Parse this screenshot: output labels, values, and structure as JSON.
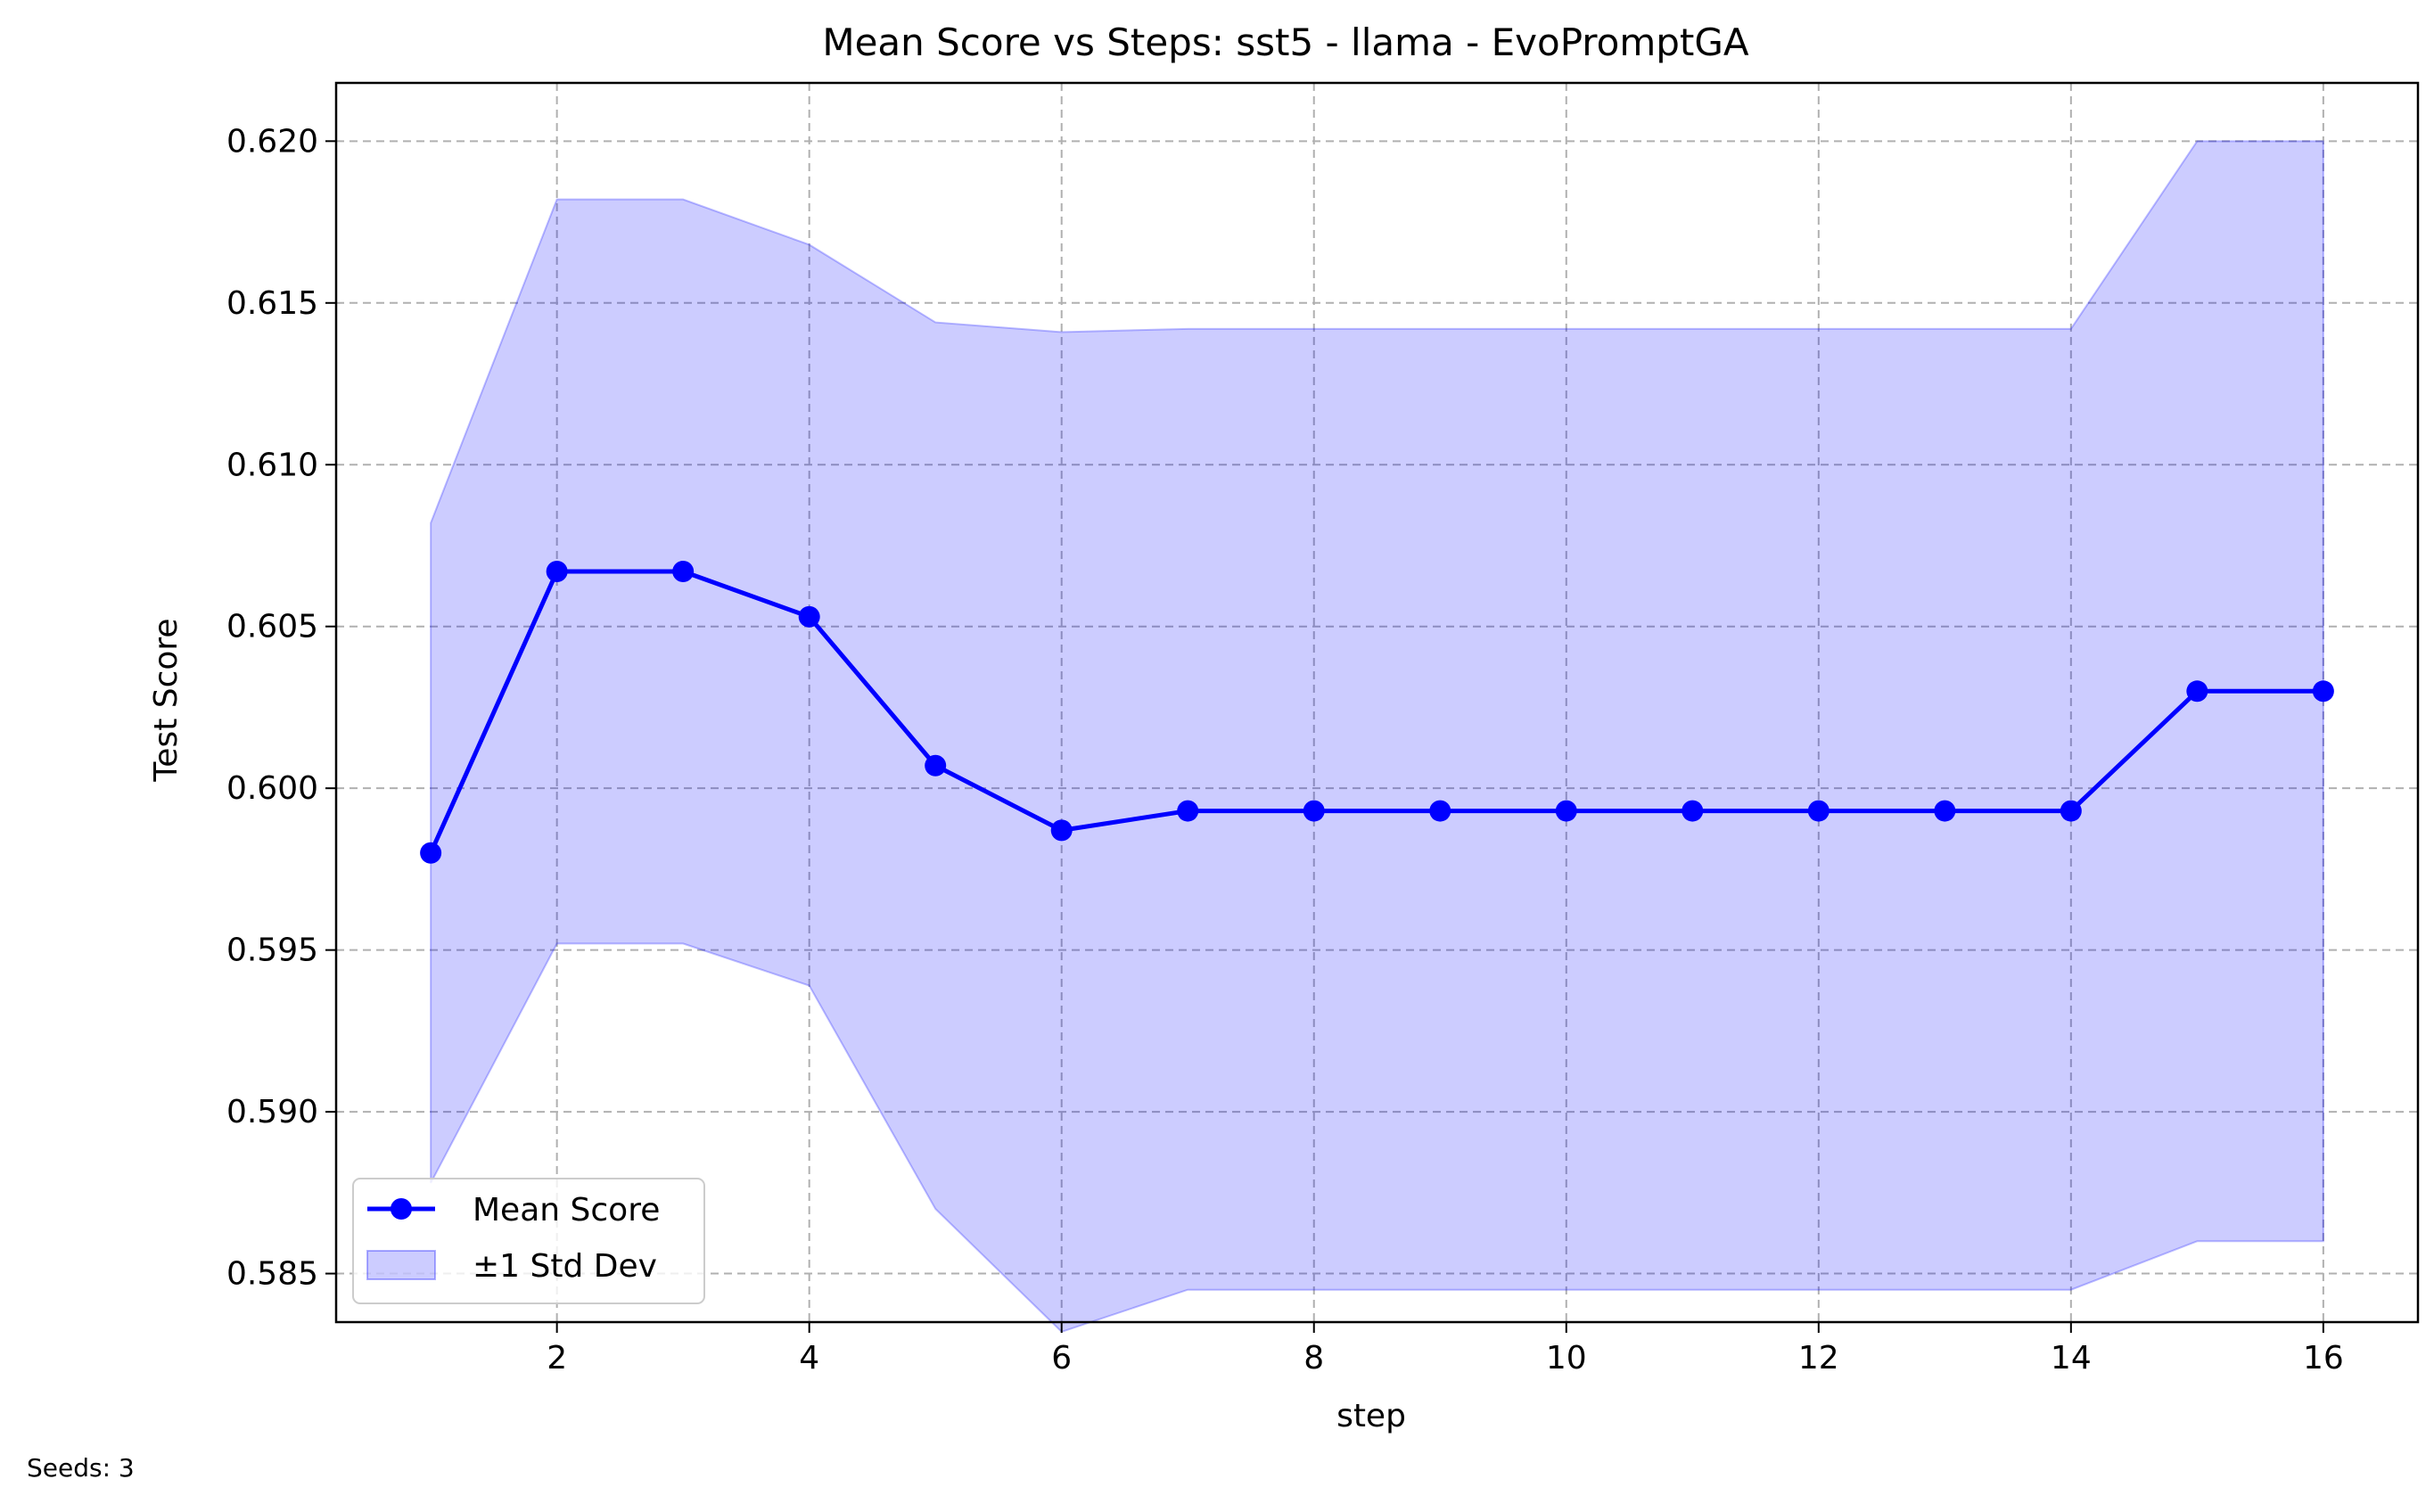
{
  "chart_data": {
    "type": "line",
    "title": "Mean Score vs Steps: sst5 - llama - EvoPromptGA",
    "xlabel": "step",
    "ylabel": "Test Score",
    "xlim": [
      0.25,
      16.75
    ],
    "ylim": [
      0.5835,
      0.6218
    ],
    "x_ticks": [
      2,
      4,
      6,
      8,
      10,
      12,
      14,
      16
    ],
    "x_tick_labels": [
      "2",
      "4",
      "6",
      "8",
      "10",
      "12",
      "14",
      "16"
    ],
    "y_ticks": [
      0.585,
      0.59,
      0.595,
      0.6,
      0.605,
      0.61,
      0.615,
      0.62
    ],
    "y_tick_labels": [
      "0.585",
      "0.590",
      "0.595",
      "0.600",
      "0.605",
      "0.610",
      "0.615",
      "0.620"
    ],
    "grid": true,
    "legend_position": "lower-left",
    "x": [
      1,
      2,
      3,
      4,
      5,
      6,
      7,
      8,
      9,
      10,
      11,
      12,
      13,
      14,
      15,
      16
    ],
    "series": [
      {
        "name": "Mean Score",
        "color": "#0000ff",
        "values": [
          0.598,
          0.6067,
          0.6067,
          0.6053,
          0.6007,
          0.5987,
          0.5993,
          0.5993,
          0.5993,
          0.5993,
          0.5993,
          0.5993,
          0.5993,
          0.5993,
          0.603,
          0.603
        ]
      }
    ],
    "band": {
      "name": "±1 Std Dev",
      "color": "#0000ff",
      "upper": [
        0.6082,
        0.6182,
        0.6182,
        0.6168,
        0.6144,
        0.6141,
        0.6142,
        0.6142,
        0.6142,
        0.6142,
        0.6142,
        0.6142,
        0.6142,
        0.6142,
        0.62,
        0.62
      ],
      "lower": [
        0.5878,
        0.5952,
        0.5952,
        0.5939,
        0.587,
        0.5832,
        0.5845,
        0.5845,
        0.5845,
        0.5845,
        0.5845,
        0.5845,
        0.5845,
        0.5845,
        0.586,
        0.586
      ]
    }
  },
  "footnote": "Seeds: 3"
}
